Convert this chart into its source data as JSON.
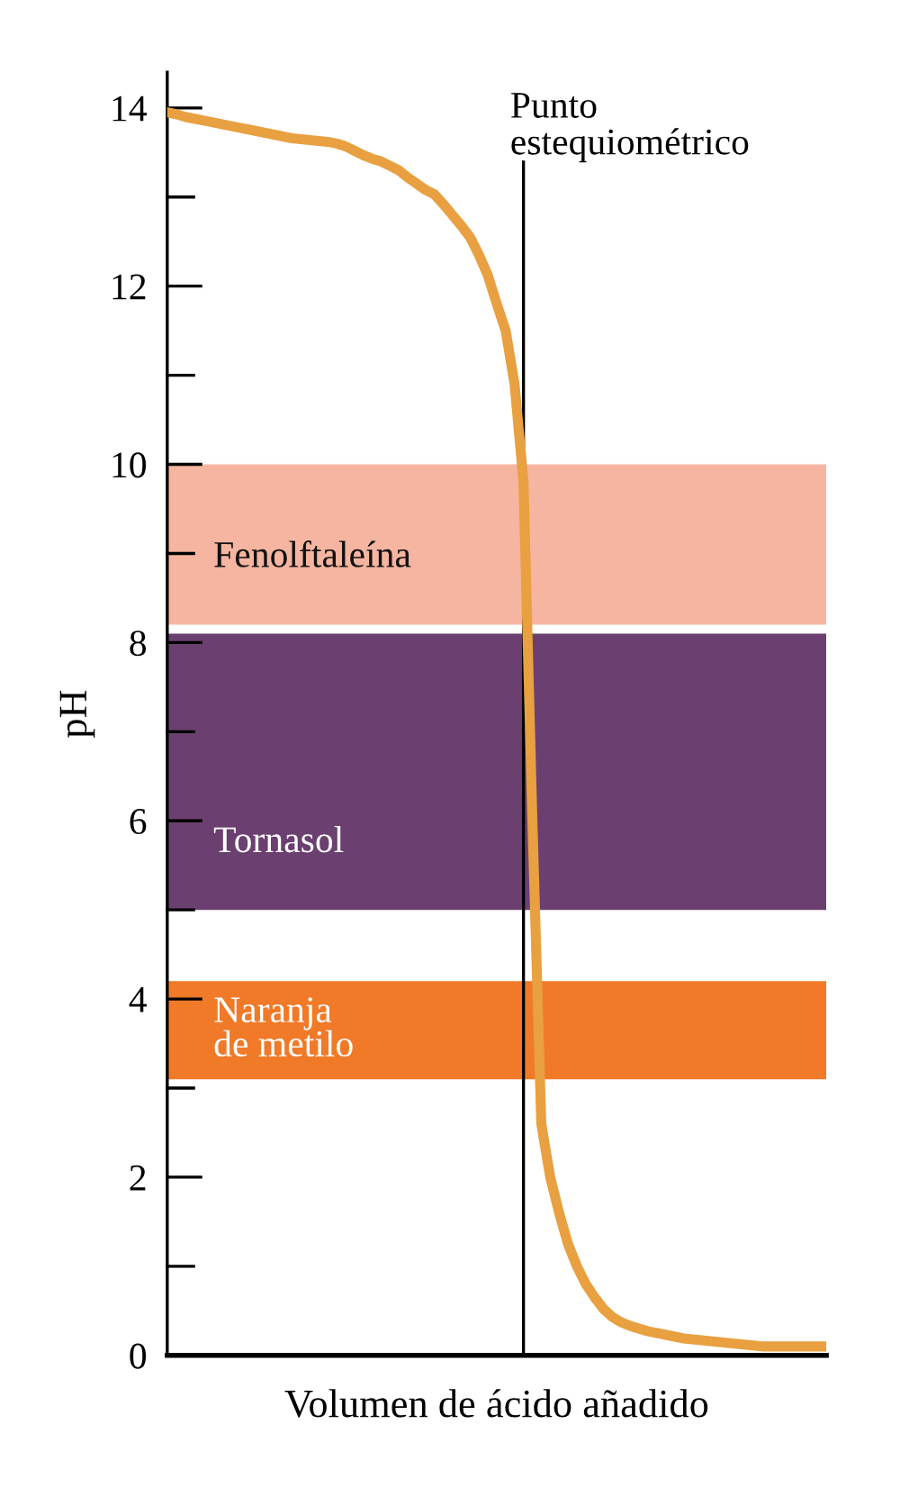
{
  "chart_data": {
    "type": "line",
    "xlabel": "Volumen de ácido añadido",
    "ylabel": "pH",
    "categories": [
      null,
      null,
      null,
      null,
      null,
      null,
      null,
      null,
      null,
      null,
      null,
      null,
      null,
      null,
      null,
      null,
      null,
      null,
      null,
      null,
      null,
      null,
      null,
      null,
      null,
      null,
      null,
      null,
      null,
      null,
      null,
      null,
      null,
      null,
      null,
      null,
      null,
      null,
      null,
      null,
      null,
      null,
      null,
      null,
      null,
      null,
      null,
      null,
      null,
      null,
      null,
      null,
      null,
      null,
      null,
      null,
      null,
      null,
      null,
      null,
      null,
      null,
      null,
      null,
      null,
      null,
      null,
      null,
      null,
      null,
      null,
      null,
      null,
      null,
      null
    ],
    "series": [
      {
        "color": "#e8a040",
        "values": [
          13.95,
          13.93,
          13.9,
          13.88,
          13.86,
          13.84,
          13.82,
          13.8,
          13.78,
          13.76,
          13.74,
          13.72,
          13.7,
          13.68,
          13.66,
          13.65,
          13.64,
          13.63,
          13.62,
          13.6,
          13.57,
          13.52,
          13.47,
          13.43,
          13.4,
          13.35,
          13.3,
          13.22,
          13.15,
          13.08,
          13.03,
          12.92,
          12.8,
          12.68,
          12.55,
          12.35,
          12.12,
          11.8,
          11.5,
          10.9,
          9.8,
          6.0,
          2.6,
          2.0,
          1.6,
          1.25,
          1.0,
          0.8,
          0.65,
          0.52,
          0.43,
          0.37,
          0.33,
          0.3,
          0.27,
          0.25,
          0.23,
          0.21,
          0.19,
          0.18,
          0.17,
          0.16,
          0.15,
          0.14,
          0.13,
          0.12,
          0.11,
          0.1,
          0.1,
          0.1,
          0.1,
          0.1,
          0.1,
          0.1,
          0.1
        ]
      }
    ],
    "ylim": [
      0,
      14.4
    ],
    "yticks": [
      0,
      {
        "value": 1,
        "label": null
      },
      2,
      {
        "value": 3,
        "label": null
      },
      4,
      {
        "value": 5,
        "label": null
      },
      6,
      {
        "value": 7,
        "label": null
      },
      8,
      {
        "value": 9,
        "label": null
      },
      10,
      {
        "value": 11,
        "label": null
      },
      12,
      {
        "value": 13,
        "label": null
      },
      14
    ],
    "bands": [
      {
        "axis": "y",
        "from": 8.2,
        "to": 10,
        "label": "Fenolftaleína",
        "color": "#f5b5a0"
      },
      {
        "axis": "y",
        "from": 5.0,
        "to": 8.1,
        "label": "Tornasol",
        "color": "#6b4070"
      },
      {
        "axis": "y",
        "from": 3.1,
        "to": 4.2,
        "label": "Naranja\nde metilo",
        "color": "#f07a28"
      }
    ],
    "annotations": [
      "Punto\nestequiométrico"
    ],
    "grid": false,
    "legend": false,
    "marker": "none",
    "line_style": "solid"
  }
}
